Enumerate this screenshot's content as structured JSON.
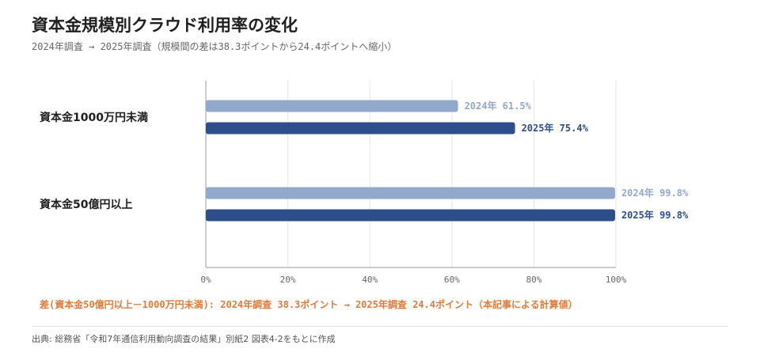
{
  "title": "資本金規模別クラウド利用率の変化",
  "subtitle": "2024年調査 → 2025年調査（規模間の差は38.3ポイントから24.4ポイントへ縮小）",
  "note": "差(資本金50億円以上－1000万円未満): 2024年調査 38.3ポイント → 2025年調査 24.4ポイント（本記事による計算値）",
  "source": "出典: 総務省「令和7年通信利用動向調査の結果」別紙2 図表4-2をもとに作成",
  "colors": {
    "y2024": "#93a9cc",
    "y2025": "#2d4e8a",
    "accent": "#e07b39",
    "grid": "#e6e6e6",
    "axis": "#999999"
  },
  "chart_data": {
    "type": "bar",
    "orientation": "horizontal",
    "categories": [
      "資本金1000万円未満",
      "資本金50億円以上"
    ],
    "series": [
      {
        "name": "2024年",
        "values": [
          61.5,
          99.8
        ],
        "labels": [
          "2024年 61.5%",
          "2024年 99.8%"
        ]
      },
      {
        "name": "2025年",
        "values": [
          75.4,
          99.8
        ],
        "labels": [
          "2025年 75.4%",
          "2025年 99.8%"
        ]
      }
    ],
    "xlim": [
      0,
      100
    ],
    "xticks": [
      "0%",
      "20%",
      "40%",
      "60%",
      "80%",
      "100%"
    ],
    "xtick_values": [
      0,
      20,
      40,
      60,
      80,
      100
    ],
    "grid": true
  }
}
